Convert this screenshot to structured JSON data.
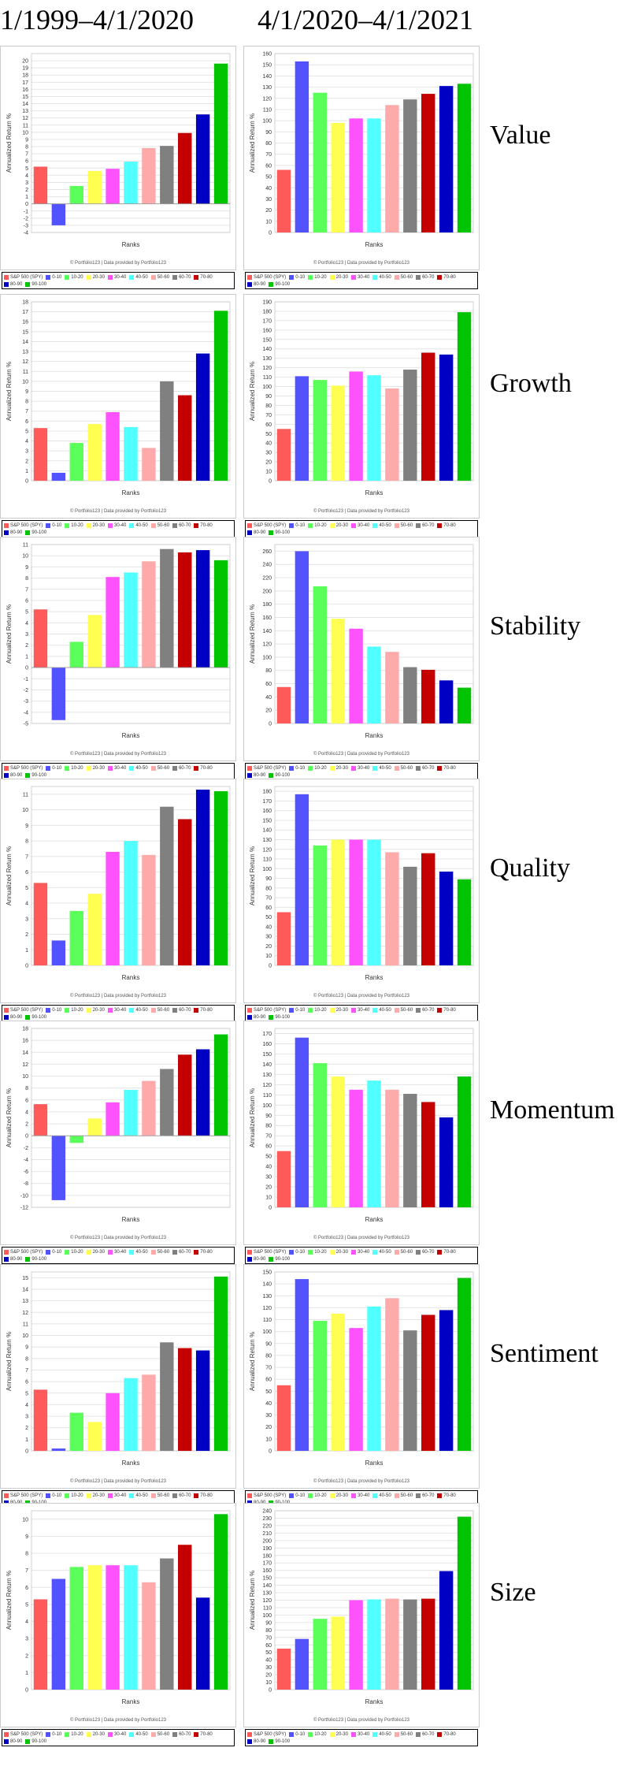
{
  "headers": {
    "left": "1/1999–4/1/2020",
    "right": "4/1/2020–4/1/2021"
  },
  "common": {
    "ylabel": "Annualized Return %",
    "xlabel": "Ranks",
    "credit": "© Portfolio123 | Data provided by Portfolio123",
    "legend": [
      "S&P 500 (SPY)",
      "0-10",
      "10-20",
      "20-30",
      "30-40",
      "40-50",
      "50-60",
      "60-70",
      "70-80",
      "80-90",
      "90-100"
    ],
    "colors": [
      "#ff5a5a",
      "#5252ff",
      "#5aff5a",
      "#ffff52",
      "#ff52ff",
      "#52ffff",
      "#ffaaaa",
      "#808080",
      "#c40000",
      "#0000c4",
      "#00c400"
    ]
  },
  "rows": [
    {
      "label": "Value"
    },
    {
      "label": "Growth"
    },
    {
      "label": "Stability"
    },
    {
      "label": "Quality"
    },
    {
      "label": "Momentum"
    },
    {
      "label": "Sentiment"
    },
    {
      "label": "Size"
    }
  ],
  "chart_data": [
    {
      "type": "bar",
      "factor": "Value",
      "period": "1/1999–4/1/2020",
      "categories": [
        "S&P 500 (SPY)",
        "0-10",
        "10-20",
        "20-30",
        "30-40",
        "40-50",
        "50-60",
        "60-70",
        "70-80",
        "80-90",
        "90-100"
      ],
      "values": [
        5.2,
        -3.0,
        2.5,
        4.6,
        4.9,
        5.9,
        7.8,
        8.1,
        9.9,
        12.5,
        19.6
      ],
      "ylim": [
        -4,
        21
      ],
      "yticks": [
        -4,
        -3,
        -2,
        -1,
        0,
        1,
        2,
        3,
        4,
        5,
        6,
        7,
        8,
        9,
        10,
        11,
        12,
        13,
        14,
        15,
        16,
        17,
        18,
        19,
        20
      ],
      "title": "",
      "xlabel": "Ranks",
      "ylabel": "Annualized Return %"
    },
    {
      "type": "bar",
      "factor": "Value",
      "period": "4/1/2020–4/1/2021",
      "categories": [
        "S&P 500 (SPY)",
        "0-10",
        "10-20",
        "20-30",
        "30-40",
        "40-50",
        "50-60",
        "60-70",
        "70-80",
        "80-90",
        "90-100"
      ],
      "values": [
        56,
        153,
        125,
        98,
        102,
        102,
        114,
        119,
        124,
        131,
        133
      ],
      "ylim": [
        0,
        160
      ],
      "yticks": [
        0,
        10,
        20,
        30,
        40,
        50,
        60,
        70,
        80,
        90,
        100,
        110,
        120,
        130,
        140,
        150,
        160
      ],
      "title": "",
      "xlabel": "Ranks",
      "ylabel": "Annualized Return %"
    },
    {
      "type": "bar",
      "factor": "Growth",
      "period": "1/1999–4/1/2020",
      "categories": [
        "S&P 500 (SPY)",
        "0-10",
        "10-20",
        "20-30",
        "30-40",
        "40-50",
        "50-60",
        "60-70",
        "70-80",
        "80-90",
        "90-100"
      ],
      "values": [
        5.3,
        0.8,
        3.8,
        5.7,
        6.9,
        5.4,
        3.3,
        10.0,
        8.6,
        12.8,
        17.1
      ],
      "ylim": [
        0,
        18
      ],
      "yticks": [
        0,
        1,
        2,
        3,
        4,
        5,
        6,
        7,
        8,
        9,
        10,
        11,
        12,
        13,
        14,
        15,
        16,
        17,
        18
      ],
      "title": "",
      "xlabel": "Ranks",
      "ylabel": "Annualized Return %"
    },
    {
      "type": "bar",
      "factor": "Growth",
      "period": "4/1/2020–4/1/2021",
      "categories": [
        "S&P 500 (SPY)",
        "0-10",
        "10-20",
        "20-30",
        "30-40",
        "40-50",
        "50-60",
        "60-70",
        "70-80",
        "80-90",
        "90-100"
      ],
      "values": [
        55,
        111,
        107,
        101,
        116,
        112,
        98,
        118,
        136,
        134,
        179
      ],
      "ylim": [
        0,
        190
      ],
      "yticks": [
        0,
        10,
        20,
        30,
        40,
        50,
        60,
        70,
        80,
        90,
        100,
        110,
        120,
        130,
        140,
        150,
        160,
        170,
        180,
        190
      ],
      "title": "",
      "xlabel": "Ranks",
      "ylabel": "Annualized Return %"
    },
    {
      "type": "bar",
      "factor": "Stability",
      "period": "1/1999–4/1/2020",
      "categories": [
        "S&P 500 (SPY)",
        "0-10",
        "10-20",
        "20-30",
        "30-40",
        "40-50",
        "50-60",
        "60-70",
        "70-80",
        "80-90",
        "90-100"
      ],
      "values": [
        5.2,
        -4.7,
        2.3,
        4.7,
        8.1,
        8.5,
        9.5,
        10.6,
        10.3,
        10.5,
        9.6
      ],
      "ylim": [
        -5,
        11
      ],
      "yticks": [
        -5,
        -4,
        -3,
        -2,
        -1,
        0,
        1,
        2,
        3,
        4,
        5,
        6,
        7,
        8,
        9,
        10,
        11
      ],
      "title": "",
      "xlabel": "Ranks",
      "ylabel": "Annualized Return %"
    },
    {
      "type": "bar",
      "factor": "Stability",
      "period": "4/1/2020–4/1/2021",
      "categories": [
        "S&P 500 (SPY)",
        "0-10",
        "10-20",
        "20-30",
        "30-40",
        "40-50",
        "50-60",
        "60-70",
        "70-80",
        "80-90",
        "90-100"
      ],
      "values": [
        55,
        260,
        207,
        158,
        143,
        116,
        108,
        85,
        81,
        65,
        54
      ],
      "ylim": [
        0,
        270
      ],
      "yticks": [
        0,
        20,
        40,
        60,
        80,
        100,
        120,
        140,
        160,
        180,
        200,
        220,
        240,
        260
      ],
      "title": "",
      "xlabel": "Ranks",
      "ylabel": "Annualized Return %"
    },
    {
      "type": "bar",
      "factor": "Quality",
      "period": "1/1999–4/1/2020",
      "categories": [
        "S&P 500 (SPY)",
        "0-10",
        "10-20",
        "20-30",
        "30-40",
        "40-50",
        "50-60",
        "60-70",
        "70-80",
        "80-90",
        "90-100"
      ],
      "values": [
        5.3,
        1.6,
        3.5,
        4.6,
        7.3,
        8.0,
        7.1,
        10.2,
        9.4,
        11.3,
        11.2
      ],
      "ylim": [
        0,
        11.5
      ],
      "yticks": [
        0,
        1,
        2,
        3,
        4,
        5,
        6,
        7,
        8,
        9,
        10,
        11
      ],
      "title": "",
      "xlabel": "Ranks",
      "ylabel": "Annualized Return %"
    },
    {
      "type": "bar",
      "factor": "Quality",
      "period": "4/1/2020–4/1/2021",
      "categories": [
        "S&P 500 (SPY)",
        "0-10",
        "10-20",
        "20-30",
        "30-40",
        "40-50",
        "50-60",
        "60-70",
        "70-80",
        "80-90",
        "90-100"
      ],
      "values": [
        55,
        177,
        124,
        130,
        130,
        130,
        117,
        102,
        116,
        97,
        89
      ],
      "ylim": [
        0,
        185
      ],
      "yticks": [
        0,
        10,
        20,
        30,
        40,
        50,
        60,
        70,
        80,
        90,
        100,
        110,
        120,
        130,
        140,
        150,
        160,
        170,
        180
      ],
      "title": "",
      "xlabel": "Ranks",
      "ylabel": "Annualized Return %"
    },
    {
      "type": "bar",
      "factor": "Momentum",
      "period": "1/1999–4/1/2020",
      "categories": [
        "S&P 500 (SPY)",
        "0-10",
        "10-20",
        "20-30",
        "30-40",
        "40-50",
        "50-60",
        "60-70",
        "70-80",
        "80-90",
        "90-100"
      ],
      "values": [
        5.3,
        -10.8,
        -1.2,
        2.9,
        5.6,
        7.7,
        9.2,
        11.2,
        13.6,
        14.5,
        17.0
      ],
      "ylim": [
        -12,
        18
      ],
      "yticks": [
        -12,
        -10,
        -8,
        -6,
        -4,
        -2,
        0,
        2,
        4,
        6,
        8,
        10,
        12,
        14,
        16,
        18
      ],
      "title": "",
      "xlabel": "Ranks",
      "ylabel": "Annualized Return %"
    },
    {
      "type": "bar",
      "factor": "Momentum",
      "period": "4/1/2020–4/1/2021",
      "categories": [
        "S&P 500 (SPY)",
        "0-10",
        "10-20",
        "20-30",
        "30-40",
        "40-50",
        "50-60",
        "60-70",
        "70-80",
        "80-90",
        "90-100"
      ],
      "values": [
        55,
        166,
        141,
        128,
        115,
        124,
        115,
        111,
        103,
        88,
        128
      ],
      "ylim": [
        0,
        175
      ],
      "yticks": [
        0,
        10,
        20,
        30,
        40,
        50,
        60,
        70,
        80,
        90,
        100,
        110,
        120,
        130,
        140,
        150,
        160,
        170
      ],
      "title": "",
      "xlabel": "Ranks",
      "ylabel": "Annualized Return %"
    },
    {
      "type": "bar",
      "factor": "Sentiment",
      "period": "1/1999–4/1/2020",
      "categories": [
        "S&P 500 (SPY)",
        "0-10",
        "10-20",
        "20-30",
        "30-40",
        "40-50",
        "50-60",
        "60-70",
        "70-80",
        "80-90",
        "90-100"
      ],
      "values": [
        5.3,
        0.2,
        3.3,
        2.5,
        5.0,
        6.3,
        6.6,
        9.4,
        8.9,
        8.7,
        15.1
      ],
      "ylim": [
        0,
        15.5
      ],
      "yticks": [
        0,
        1,
        2,
        3,
        4,
        5,
        6,
        7,
        8,
        9,
        10,
        11,
        12,
        13,
        14,
        15
      ],
      "title": "",
      "xlabel": "Ranks",
      "ylabel": "Annualized Return %"
    },
    {
      "type": "bar",
      "factor": "Sentiment",
      "period": "4/1/2020–4/1/2021",
      "categories": [
        "S&P 500 (SPY)",
        "0-10",
        "10-20",
        "20-30",
        "30-40",
        "40-50",
        "50-60",
        "60-70",
        "70-80",
        "80-90",
        "90-100"
      ],
      "values": [
        55,
        144,
        109,
        115,
        103,
        121,
        128,
        101,
        114,
        118,
        145
      ],
      "ylim": [
        0,
        150
      ],
      "yticks": [
        0,
        10,
        20,
        30,
        40,
        50,
        60,
        70,
        80,
        90,
        100,
        110,
        120,
        130,
        140,
        150
      ],
      "title": "",
      "xlabel": "Ranks",
      "ylabel": "Annualized Return %"
    },
    {
      "type": "bar",
      "factor": "Size",
      "period": "1/1999–4/1/2020",
      "categories": [
        "S&P 500 (SPY)",
        "0-10",
        "10-20",
        "20-30",
        "30-40",
        "40-50",
        "50-60",
        "60-70",
        "70-80",
        "80-90",
        "90-100"
      ],
      "values": [
        5.3,
        6.5,
        7.2,
        7.3,
        7.3,
        7.3,
        6.3,
        7.7,
        8.5,
        5.4,
        10.3
      ],
      "ylim": [
        0,
        10.5
      ],
      "yticks": [
        0,
        1,
        2,
        3,
        4,
        5,
        6,
        7,
        8,
        9,
        10
      ],
      "title": "",
      "xlabel": "Ranks",
      "ylabel": "Annualized Return %"
    },
    {
      "type": "bar",
      "factor": "Size",
      "period": "4/1/2020–4/1/2021",
      "categories": [
        "S&P 500 (SPY)",
        "0-10",
        "10-20",
        "20-30",
        "30-40",
        "40-50",
        "50-60",
        "60-70",
        "70-80",
        "80-90",
        "90-100"
      ],
      "values": [
        55,
        68,
        95,
        98,
        120,
        121,
        122,
        121,
        122,
        159,
        232
      ],
      "ylim": [
        0,
        240
      ],
      "yticks": [
        0,
        10,
        20,
        30,
        40,
        50,
        60,
        70,
        80,
        90,
        100,
        110,
        120,
        130,
        140,
        150,
        160,
        170,
        180,
        190,
        200,
        210,
        220,
        230,
        240
      ],
      "title": "",
      "xlabel": "Ranks",
      "ylabel": "Annualized Return %"
    }
  ]
}
